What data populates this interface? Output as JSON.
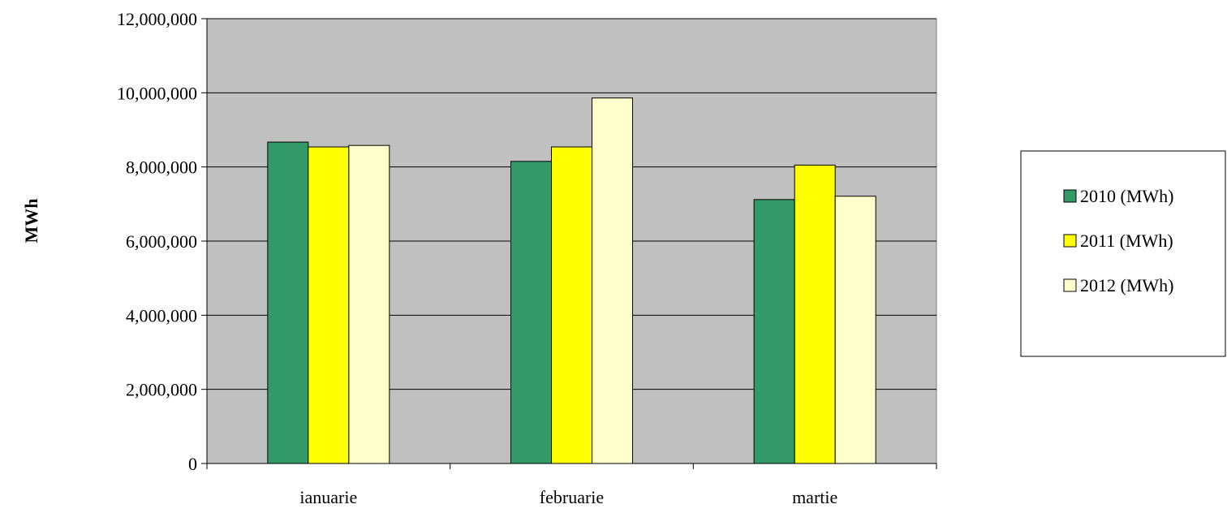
{
  "chart_data": {
    "type": "bar",
    "title": "",
    "xlabel": "",
    "ylabel": "MWh",
    "categories": [
      "ianuarie",
      "februarie",
      "martie"
    ],
    "series": [
      {
        "name": "2010 (MWh)",
        "color": "#339966",
        "values": [
          8670000,
          8150000,
          7120000
        ]
      },
      {
        "name": "2011 (MWh)",
        "color": "#ffff00",
        "values": [
          8540000,
          8540000,
          8050000
        ]
      },
      {
        "name": "2012 (MWh)",
        "color": "#ffffcc",
        "values": [
          8580000,
          9860000,
          7210000
        ]
      }
    ],
    "ylim": [
      0,
      12000000
    ],
    "yticks": [
      0,
      2000000,
      4000000,
      6000000,
      8000000,
      10000000,
      12000000
    ],
    "ytick_labels": [
      "0",
      "2,000,000",
      "4,000,000",
      "6,000,000",
      "8,000,000",
      "10,000,000",
      "12,000,000"
    ],
    "grid": true,
    "plot_background": "#c0c0c0",
    "legend_position": "right"
  }
}
